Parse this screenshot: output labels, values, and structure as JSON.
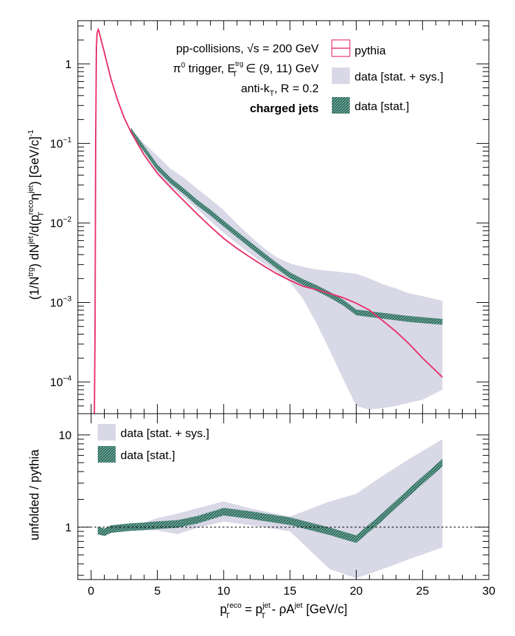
{
  "chart_data": [
    {
      "type": "area",
      "panel": "top",
      "ylabel_main": "(1/N",
      "ylabel_sup1": "trg",
      "ylabel_mid1": ") dN",
      "ylabel_sup2": "jet",
      "ylabel_mid2": "/d(p",
      "ylabel_sup3": "reco",
      "ylabel_sub3": "T",
      "ylabel_mid3": "η",
      "ylabel_sup4": "jet",
      "ylabel_end": ") [GeV/c]",
      "ylabel_exp": "-1",
      "yscale": "log",
      "ylim": [
        4e-05,
        3.5
      ],
      "xlim": [
        -1,
        30
      ],
      "y_ticks": [
        {
          "v": 1,
          "base": "1",
          "exp": ""
        },
        {
          "v": 0.1,
          "base": "10",
          "exp": "−1"
        },
        {
          "v": 0.01,
          "base": "10",
          "exp": "−2"
        },
        {
          "v": 0.001,
          "base": "10",
          "exp": "−3"
        },
        {
          "v": 0.0001,
          "base": "10",
          "exp": "−4"
        }
      ],
      "annotations": {
        "line1": "pp-collisions, √s = 200 GeV",
        "line2_a": "π",
        "line2_sup": "0",
        "line2_b": " trigger, E",
        "line2_sup2": "trg",
        "line2_sub2": "T",
        "line2_c": " ∈ (9, 11) GeV",
        "line3_a": "anti-k",
        "line3_sub": "T",
        "line3_b": ", R = 0.2",
        "line4": "charged jets"
      },
      "legend": [
        "pythia",
        "data [stat. + sys.]",
        "data [stat.]"
      ],
      "series": [
        {
          "name": "pythia",
          "color": "#e8336b",
          "x": [
            0.25,
            0.3,
            0.35,
            0.4,
            0.45,
            0.5,
            0.55,
            0.6,
            1.0,
            1.5,
            2.0,
            2.5,
            3.0,
            3.5,
            4.0,
            5.0,
            6.0,
            7.0,
            8.0,
            9.0,
            10.0,
            11.0,
            12.0,
            13.0,
            14.0,
            15.0,
            16.0,
            17.0,
            18.0,
            19.0,
            20.0,
            21.0,
            22.0,
            23.0,
            24.0,
            25.0,
            26.5
          ],
          "y": [
            4e-05,
            0.0004,
            0.12,
            1.6,
            2.4,
            2.6,
            2.7,
            2.55,
            1.4,
            0.65,
            0.35,
            0.21,
            0.14,
            0.1,
            0.072,
            0.042,
            0.028,
            0.019,
            0.013,
            0.009,
            0.0064,
            0.0048,
            0.0037,
            0.0029,
            0.0023,
            0.0019,
            0.0016,
            0.00145,
            0.0013,
            0.00115,
            0.00098,
            0.0008,
            0.00059,
            0.00043,
            0.0003,
            0.0002,
            0.000115
          ]
        },
        {
          "name": "data [stat.]",
          "color": "#2f6b5a",
          "x": [
            3.0,
            4.0,
            5.0,
            6.0,
            7.0,
            8.0,
            9.0,
            10.0,
            11.0,
            12.0,
            13.0,
            14.0,
            15.0,
            16.0,
            17.0,
            18.0,
            19.0,
            20.0,
            22.0,
            24.0,
            26.5
          ],
          "y": [
            0.145,
            0.085,
            0.05,
            0.034,
            0.025,
            0.018,
            0.0135,
            0.0098,
            0.0072,
            0.0053,
            0.0039,
            0.0029,
            0.0022,
            0.0018,
            0.00152,
            0.00125,
            0.001,
            0.00075,
            0.00068,
            0.00062,
            0.00057
          ]
        },
        {
          "name": "data [stat. + sys.]",
          "color": "#d8d8e6",
          "x": [
            3.0,
            4.0,
            5.0,
            6.0,
            7.0,
            8.0,
            9.0,
            10.0,
            11.0,
            12.0,
            13.0,
            14.0,
            15.0,
            16.0,
            17.0,
            18.0,
            19.0,
            20.0,
            21.0,
            22.0,
            23.0,
            24.0,
            25.0,
            26.5
          ],
          "lo": [
            0.14,
            0.078,
            0.043,
            0.029,
            0.021,
            0.015,
            0.0106,
            0.0075,
            0.0055,
            0.0041,
            0.0031,
            0.0024,
            0.0018,
            0.0011,
            0.00055,
            0.00025,
            0.00011,
            5e-05,
            4.5e-05,
            4.7e-05,
            5e-05,
            5.5e-05,
            6e-05,
            8e-05
          ],
          "hi": [
            0.15,
            0.1,
            0.07,
            0.048,
            0.037,
            0.027,
            0.02,
            0.0145,
            0.0098,
            0.0068,
            0.0049,
            0.0037,
            0.0031,
            0.0028,
            0.0026,
            0.0025,
            0.0024,
            0.0023,
            0.002,
            0.0017,
            0.0015,
            0.0013,
            0.0012,
            0.00105
          ]
        }
      ]
    },
    {
      "type": "area",
      "panel": "bottom",
      "ylabel": "unfolded / pythia",
      "xlabel_a": "p",
      "xlabel_sup1": "reco",
      "xlabel_sub1": "T",
      "xlabel_b": " = p",
      "xlabel_sup2": "jet",
      "xlabel_sub2": "T",
      "xlabel_c": " - ρA",
      "xlabel_sup3": "jet",
      "xlabel_d": " [GeV/c]",
      "yscale": "log",
      "ylim": [
        0.27,
        17
      ],
      "xlim": [
        -1,
        30
      ],
      "y_ticks": [
        {
          "v": 1,
          "label": "1"
        },
        {
          "v": 10,
          "label": "10"
        }
      ],
      "x_ticks": [
        0,
        5,
        10,
        15,
        20,
        25,
        30
      ],
      "x_tick_labels": [
        "0",
        "5",
        "10",
        "15",
        "20",
        "25",
        "30"
      ],
      "reference_line": 1,
      "legend": [
        "data [stat. + sys.]",
        "data [stat.]"
      ],
      "series": [
        {
          "name": "data [stat.]",
          "color": "#2f6b5a",
          "x": [
            0.5,
            1.0,
            1.5,
            2.0,
            3.0,
            4.0,
            5.0,
            6.5,
            8.0,
            10.0,
            12.0,
            15.0,
            18.0,
            20.0,
            22.0,
            24.0,
            26.5
          ],
          "y": [
            0.92,
            0.88,
            0.95,
            0.97,
            1.0,
            1.02,
            1.05,
            1.08,
            1.2,
            1.47,
            1.35,
            1.16,
            0.9,
            0.74,
            1.3,
            2.4,
            5.0
          ]
        },
        {
          "name": "data [stat. + sys.]",
          "color": "#d8d8e6",
          "x": [
            2.0,
            3.0,
            4.0,
            5.0,
            6.5,
            8.0,
            10.0,
            12.0,
            15.0,
            18.0,
            20.0,
            22.0,
            24.0,
            26.5
          ],
          "lo": [
            0.97,
            0.96,
            0.93,
            0.92,
            0.84,
            0.98,
            1.15,
            1.05,
            0.9,
            0.35,
            0.28,
            0.35,
            0.45,
            0.6
          ],
          "hi": [
            1.0,
            1.04,
            1.12,
            1.25,
            1.4,
            1.6,
            1.9,
            1.6,
            1.3,
            1.9,
            2.3,
            3.6,
            5.5,
            9.0
          ]
        }
      ]
    }
  ]
}
